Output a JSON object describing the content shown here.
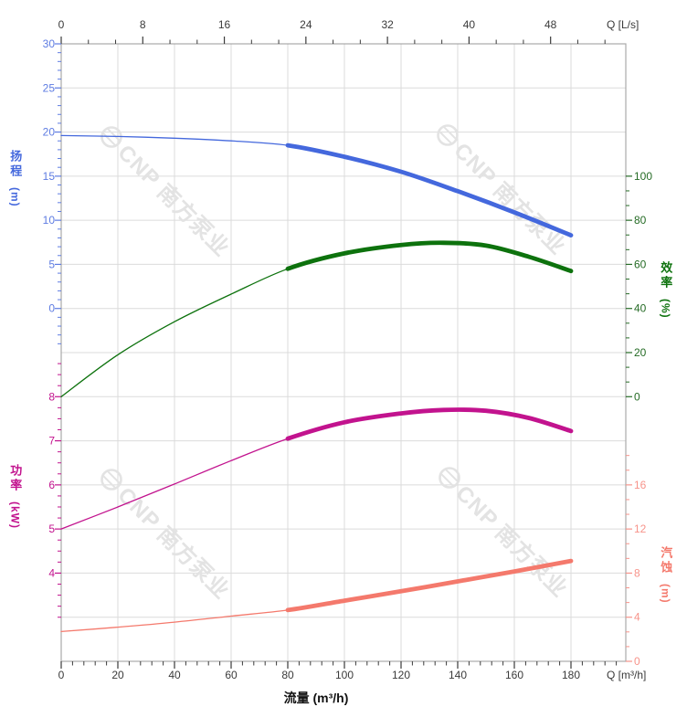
{
  "watermark": {
    "brand": "CNP",
    "cn": "南方泵业",
    "color": "#e3e3e3"
  },
  "chart_data": {
    "type": "line",
    "title": "",
    "x_axis_bottom": {
      "axis_label": "流量 (m³/h)",
      "unit_label": "Q [m³/h]",
      "unit": "m³/h",
      "ticks": [
        0,
        20,
        40,
        60,
        80,
        100,
        120,
        140,
        160,
        180
      ],
      "minor_step": 4,
      "range": [
        0,
        199.4
      ],
      "tick_color": "#3a3a3a"
    },
    "x_axis_top": {
      "unit_label": "Q [L/s]",
      "unit": "L/s",
      "ticks": [
        0,
        8,
        16,
        24,
        32,
        40,
        48
      ],
      "range": [
        0,
        55.4
      ],
      "tick_color": "#3a3a3a"
    },
    "y_axes": [
      {
        "id": "head",
        "label": "扬程",
        "unit": "(m)",
        "side": "left",
        "color": "#4468dd",
        "tick_color": "#5e7ce2",
        "ticks": [
          30,
          25,
          20,
          15,
          10,
          5,
          0
        ]
      },
      {
        "id": "efficiency",
        "label": "效率",
        "unit": "(%)",
        "side": "right",
        "color": "#0d720d",
        "tick_color": "#256b25",
        "ticks": [
          100,
          80,
          60,
          40,
          20,
          0
        ]
      },
      {
        "id": "power",
        "label": "功率",
        "unit": "(kW)",
        "side": "left",
        "color": "#c2138e",
        "tick_color": "#c2138e",
        "ticks": [
          8,
          7,
          6,
          5,
          4
        ]
      },
      {
        "id": "npsh",
        "label": "汽蚀",
        "unit": "(m)",
        "side": "right",
        "color": "#f4796c",
        "tick_color": "#f7938a",
        "ticks": [
          16,
          12,
          8,
          4,
          0
        ]
      }
    ],
    "series": [
      {
        "name": "head_curve",
        "axis": "head",
        "color": "#4468dd",
        "bold_from": 80,
        "points": [
          [
            0,
            19.6
          ],
          [
            20,
            19.5
          ],
          [
            40,
            19.3
          ],
          [
            60,
            19.0
          ],
          [
            80,
            18.5
          ],
          [
            100,
            17.2
          ],
          [
            120,
            15.5
          ],
          [
            140,
            13.3
          ],
          [
            160,
            10.9
          ],
          [
            180,
            8.3
          ]
        ]
      },
      {
        "name": "efficiency_curve",
        "axis": "efficiency",
        "color": "#0d720d",
        "bold_from": 80,
        "points": [
          [
            0,
            0
          ],
          [
            20,
            19
          ],
          [
            40,
            34
          ],
          [
            60,
            46.5
          ],
          [
            80,
            58
          ],
          [
            100,
            65
          ],
          [
            120,
            68.8
          ],
          [
            135,
            69.8
          ],
          [
            150,
            68.5
          ],
          [
            165,
            63.5
          ],
          [
            180,
            57
          ]
        ]
      },
      {
        "name": "power_curve",
        "axis": "power",
        "color": "#c2138e",
        "bold_from": 80,
        "points": [
          [
            0,
            5.0
          ],
          [
            20,
            5.5
          ],
          [
            40,
            6.02
          ],
          [
            60,
            6.55
          ],
          [
            80,
            7.05
          ],
          [
            100,
            7.42
          ],
          [
            120,
            7.62
          ],
          [
            135,
            7.7
          ],
          [
            150,
            7.68
          ],
          [
            165,
            7.52
          ],
          [
            180,
            7.22
          ]
        ]
      },
      {
        "name": "npsh_curve",
        "axis": "npsh",
        "color": "#f4796c",
        "bold_from": 80,
        "points": [
          [
            0,
            2.7
          ],
          [
            20,
            3.1
          ],
          [
            40,
            3.55
          ],
          [
            60,
            4.1
          ],
          [
            80,
            4.65
          ],
          [
            100,
            5.5
          ],
          [
            120,
            6.35
          ],
          [
            140,
            7.25
          ],
          [
            160,
            8.15
          ],
          [
            180,
            9.1
          ]
        ]
      }
    ],
    "grid": {
      "show": true,
      "color": "#dbdbdb",
      "frame_color": "#a9a9a9"
    },
    "legend": null
  }
}
